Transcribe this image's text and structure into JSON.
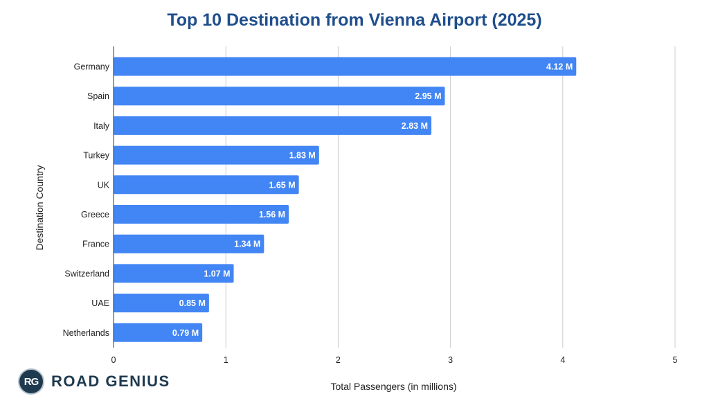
{
  "chart_data": {
    "type": "bar",
    "orientation": "horizontal",
    "title": "Top 10 Destination from Vienna Airport (2025)",
    "xlabel": "Total Passengers (in millions)",
    "ylabel": "Destination Country",
    "xlim": [
      0,
      5
    ],
    "x_ticks": [
      "0",
      "1",
      "2",
      "3",
      "4",
      "5"
    ],
    "grid": true,
    "categories": [
      "Germany",
      "Spain",
      "Italy",
      "Turkey",
      "UK",
      "Greece",
      "France",
      "Switzerland",
      "UAE",
      "Netherlands"
    ],
    "values": [
      4.12,
      2.95,
      2.83,
      1.83,
      1.65,
      1.56,
      1.34,
      1.07,
      0.85,
      0.79
    ],
    "data_labels": [
      "4.12 M",
      "2.95 M",
      "2.83 M",
      "1.83 M",
      "1.65 M",
      "1.56 M",
      "1.34 M",
      "1.07 M",
      "0.85 M",
      "0.79 M"
    ],
    "bar_color": "#4285f4"
  },
  "branding": {
    "badge_text": "RG",
    "name": "ROAD GENIUS"
  }
}
